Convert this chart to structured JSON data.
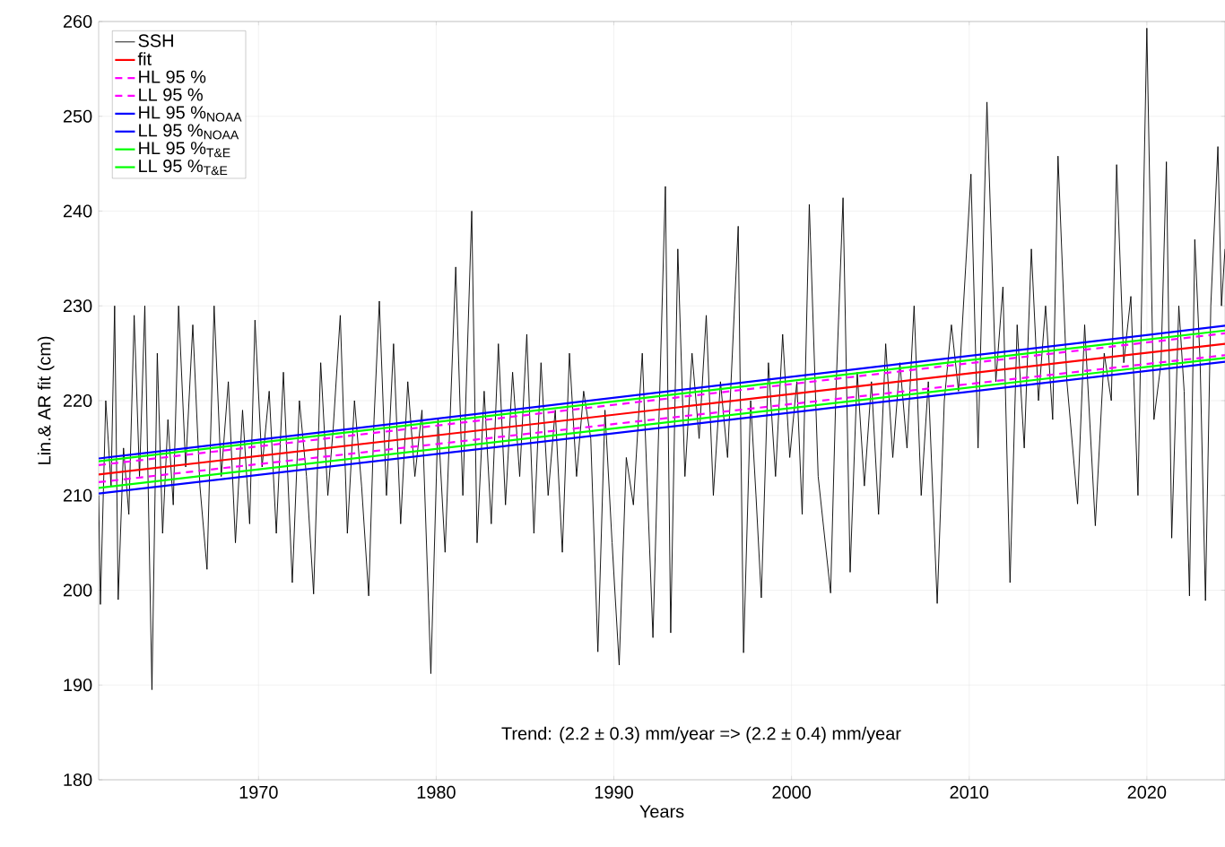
{
  "chart_data": {
    "type": "line",
    "xlabel": "Years",
    "ylabel": "Lin.& AR fit (cm)",
    "xlim": [
      1961,
      2024.4
    ],
    "ylim": [
      180,
      260
    ],
    "xticks": [
      1970,
      1980,
      1990,
      2000,
      2010,
      2020
    ],
    "yticks": [
      180,
      190,
      200,
      210,
      220,
      230,
      240,
      250,
      260
    ],
    "grid": true,
    "legend": "top left",
    "annotations": [
      "Trend: (2.2  ± 0.3) mm/year => (2.2 ± 0.4) mm/year"
    ],
    "series": [
      {
        "name": "SSH",
        "color": "#000000",
        "x": [
          1961.0,
          1961.1,
          1961.4,
          1961.7,
          1961.9,
          1962.1,
          1962.4,
          1962.7,
          1963.0,
          1963.3,
          1963.6,
          1964.0,
          1964.3,
          1964.6,
          1964.9,
          1965.2,
          1965.5,
          1965.9,
          1966.3,
          1966.7,
          1967.1,
          1967.5,
          1967.9,
          1968.3,
          1968.7,
          1969.1,
          1969.5,
          1969.8,
          1970.2,
          1970.6,
          1971.0,
          1971.4,
          1971.9,
          1972.3,
          1972.7,
          1973.1,
          1973.5,
          1973.9,
          1974.2,
          1974.6,
          1975.0,
          1975.4,
          1975.8,
          1976.2,
          1976.5,
          1976.8,
          1977.2,
          1977.6,
          1978.0,
          1978.4,
          1978.8,
          1979.2,
          1979.7,
          1980.1,
          1980.5,
          1981.1,
          1981.5,
          1982.0,
          1982.3,
          1982.7,
          1983.1,
          1983.5,
          1983.9,
          1984.3,
          1984.7,
          1985.1,
          1985.5,
          1985.9,
          1986.3,
          1986.7,
          1987.1,
          1987.5,
          1987.9,
          1988.3,
          1988.7,
          1989.1,
          1989.5,
          1989.9,
          1990.3,
          1990.7,
          1991.1,
          1991.6,
          1992.2,
          1992.9,
          1993.2,
          1993.6,
          1994.0,
          1994.4,
          1994.8,
          1995.2,
          1995.6,
          1996.0,
          1996.4,
          1997.0,
          1997.3,
          1997.7,
          1998.0,
          1998.3,
          1998.7,
          1999.1,
          1999.5,
          1999.9,
          2000.3,
          2000.6,
          2001.0,
          2001.5,
          2002.2,
          2002.5,
          2002.9,
          2003.3,
          2003.7,
          2004.1,
          2004.5,
          2004.9,
          2005.3,
          2005.7,
          2006.1,
          2006.5,
          2006.9,
          2007.3,
          2007.7,
          2008.2,
          2008.6,
          2009.0,
          2009.4,
          2009.8,
          2010.1,
          2010.5,
          2011.0,
          2011.5,
          2011.9,
          2012.3,
          2012.7,
          2013.1,
          2013.5,
          2013.9,
          2014.3,
          2014.7,
          2015.0,
          2015.5,
          2016.1,
          2016.5,
          2017.1,
          2017.6,
          2018.0,
          2018.3,
          2018.7,
          2019.1,
          2019.5,
          2020.0,
          2020.4,
          2020.8,
          2021.1,
          2021.4,
          2021.8,
          2022.1,
          2022.4,
          2022.7,
          2023.0,
          2023.3,
          2023.6,
          2024.0,
          2024.2,
          2024.4
        ],
        "values": [
          210,
          198.5,
          220,
          211,
          230,
          199,
          215,
          208,
          229,
          212,
          230,
          189.5,
          225,
          206,
          218,
          209,
          230,
          213,
          228,
          211,
          202.2,
          230,
          212,
          222,
          205,
          219,
          207,
          228.5,
          213,
          221,
          206,
          223,
          200.8,
          220,
          212,
          199.6,
          224,
          210,
          217,
          229,
          206,
          220,
          211,
          199.4,
          218,
          230.5,
          210,
          226,
          207,
          222,
          212,
          219,
          191.2,
          218,
          204,
          234.1,
          210,
          240,
          205,
          221,
          207,
          226,
          209,
          223,
          212,
          227,
          206,
          224,
          210,
          219,
          204,
          225,
          212,
          221,
          216,
          193.5,
          219,
          205,
          192.1,
          214,
          209,
          225,
          195,
          242.6,
          195.5,
          236,
          212,
          225,
          216,
          229,
          210,
          222,
          214,
          238.4,
          193.4,
          220,
          210,
          199.2,
          224,
          212,
          227,
          214,
          222,
          208,
          240.7,
          212,
          199.7,
          221,
          241.4,
          201.9,
          223,
          211,
          222,
          208,
          226,
          214,
          224,
          215,
          230,
          210,
          222,
          198.6,
          220,
          228,
          221,
          234,
          243.9,
          215,
          251.5,
          222,
          232,
          200.8,
          228,
          215,
          236,
          220,
          230,
          218,
          245.8,
          222,
          209.1,
          228,
          206.8,
          225,
          220,
          244.9,
          224,
          231,
          210,
          259.3,
          218,
          224,
          245.2,
          205.5,
          230,
          221,
          199.4,
          237,
          224,
          198.9,
          230,
          246.8,
          230,
          236
        ]
      },
      {
        "name": "fit",
        "color": "#ff0000",
        "x": [
          1961,
          2024.4
        ],
        "values": [
          212.2,
          226.0
        ]
      },
      {
        "name": "HL 95 %",
        "color": "#ff00ff",
        "line_style": "dashed",
        "x": [
          1961,
          2024.4
        ],
        "values": [
          213.2,
          227.1
        ]
      },
      {
        "name": "LL 95 %",
        "color": "#ff00ff",
        "line_style": "dashed",
        "x": [
          1961,
          2024.4
        ],
        "values": [
          211.4,
          224.8
        ]
      },
      {
        "name": "HL  95  %$_{NOAA}$",
        "color": "#0000ff",
        "x": [
          1961,
          2024.4
        ],
        "values": [
          213.9,
          227.9
        ]
      },
      {
        "name": "LL  95  %$_{NOAA}$",
        "color": "#0000ff",
        "x": [
          1961,
          2024.4
        ],
        "values": [
          210.2,
          224.1
        ]
      },
      {
        "name": "HL  95  %$_{T&E}$",
        "color": "#00ff00",
        "x": [
          1961,
          2024.4
        ],
        "values": [
          213.6,
          227.4
        ]
      },
      {
        "name": "LL  95  %$_{T&E}$",
        "color": "#00ff00",
        "x": [
          1961,
          2024.4
        ],
        "values": [
          210.8,
          224.5
        ]
      }
    ]
  }
}
